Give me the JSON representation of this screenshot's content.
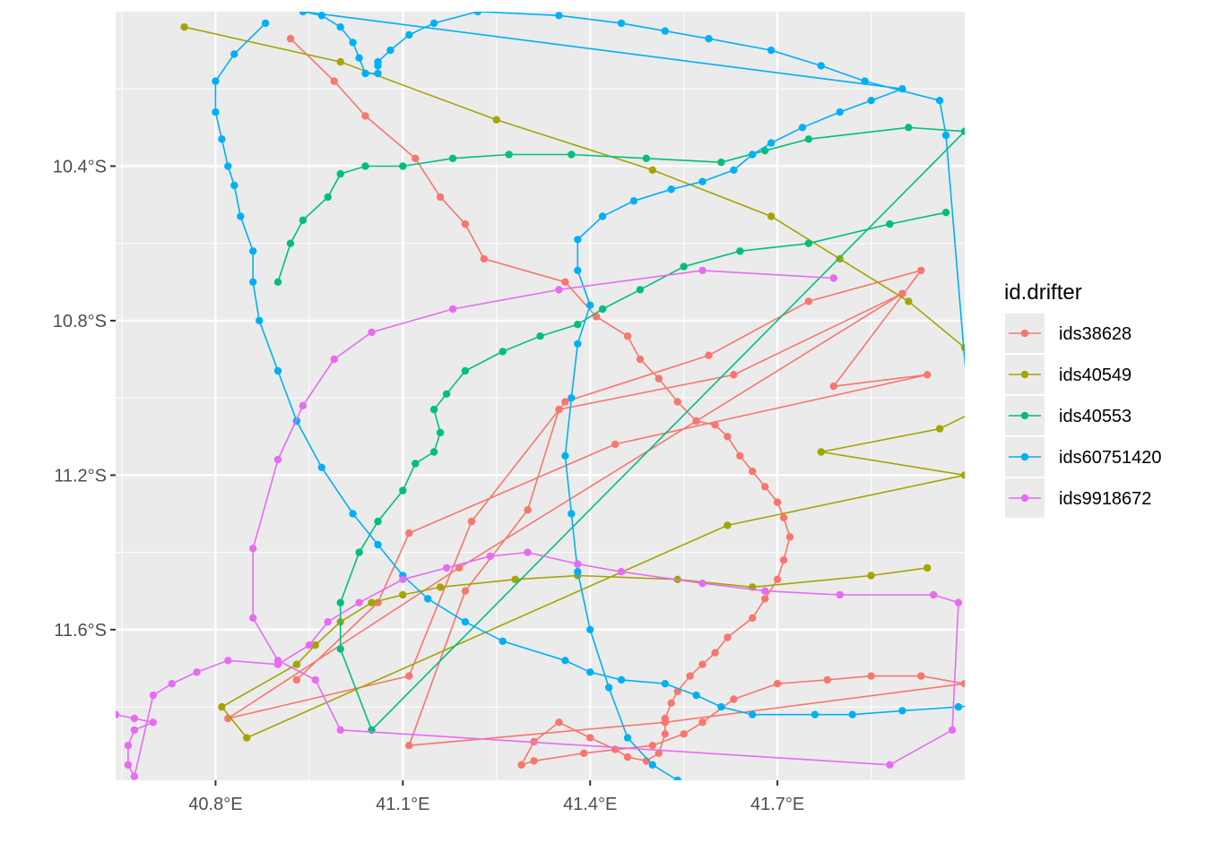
{
  "chart_data": {
    "type": "line",
    "title": "",
    "xlabel": "",
    "ylabel": "",
    "xlim": [
      40.64,
      42.0
    ],
    "ylim": [
      -11.99,
      -10.0
    ],
    "x_ticks": [
      {
        "value": 40.8,
        "label": "40.8°E"
      },
      {
        "value": 41.1,
        "label": "41.1°E"
      },
      {
        "value": 41.4,
        "label": "41.4°E"
      },
      {
        "value": 41.7,
        "label": "41.7°E"
      }
    ],
    "y_ticks": [
      {
        "value": -10.4,
        "label": "10.4°S"
      },
      {
        "value": -10.8,
        "label": "10.8°S"
      },
      {
        "value": -11.2,
        "label": "11.2°S"
      },
      {
        "value": -11.6,
        "label": "11.6°S"
      }
    ],
    "grid": true,
    "background": "#ebebeb",
    "legend": {
      "title": "id.drifter",
      "position": "right"
    },
    "series": [
      {
        "name": "ids38628",
        "color": "#f8766d",
        "points": [
          [
            40.92,
            -10.07
          ],
          [
            40.99,
            -10.18
          ],
          [
            41.04,
            -10.27
          ],
          [
            41.12,
            -10.38
          ],
          [
            41.16,
            -10.48
          ],
          [
            41.2,
            -10.55
          ],
          [
            41.23,
            -10.64
          ],
          [
            41.36,
            -10.7
          ],
          [
            41.41,
            -10.79
          ],
          [
            41.46,
            -10.84
          ],
          [
            41.48,
            -10.9
          ],
          [
            41.51,
            -10.95
          ],
          [
            41.54,
            -11.01
          ],
          [
            41.57,
            -11.06
          ],
          [
            41.6,
            -11.07
          ],
          [
            41.62,
            -11.1
          ],
          [
            41.64,
            -11.15
          ],
          [
            41.66,
            -11.19
          ],
          [
            41.68,
            -11.23
          ],
          [
            41.7,
            -11.27
          ],
          [
            41.71,
            -11.31
          ],
          [
            41.72,
            -11.36
          ],
          [
            41.71,
            -11.42
          ],
          [
            41.7,
            -11.47
          ],
          [
            41.68,
            -11.52
          ],
          [
            41.66,
            -11.57
          ],
          [
            41.62,
            -11.62
          ],
          [
            41.6,
            -11.66
          ],
          [
            41.58,
            -11.69
          ],
          [
            41.56,
            -11.72
          ],
          [
            41.54,
            -11.76
          ],
          [
            41.53,
            -11.79
          ],
          [
            41.52,
            -11.83
          ],
          [
            41.52,
            -11.87
          ],
          [
            41.51,
            -11.92
          ],
          [
            41.49,
            -11.94
          ],
          [
            41.46,
            -11.93
          ],
          [
            41.44,
            -11.91
          ],
          [
            41.4,
            -11.88
          ],
          [
            41.35,
            -11.84
          ],
          [
            41.31,
            -11.89
          ],
          [
            41.29,
            -11.95
          ],
          [
            41.31,
            -11.94
          ],
          [
            41.39,
            -11.92
          ],
          [
            41.5,
            -11.9
          ],
          [
            41.55,
            -11.87
          ],
          [
            41.58,
            -11.84
          ],
          [
            41.63,
            -11.78
          ],
          [
            41.7,
            -11.74
          ],
          [
            41.78,
            -11.73
          ],
          [
            41.85,
            -11.72
          ],
          [
            41.93,
            -11.72
          ],
          [
            42.0,
            -11.74
          ],
          [
            41.52,
            -11.84
          ],
          [
            41.11,
            -11.9
          ],
          [
            41.2,
            -11.5
          ],
          [
            41.3,
            -11.29
          ],
          [
            41.35,
            -11.03
          ],
          [
            41.63,
            -10.94
          ],
          [
            41.9,
            -10.73
          ],
          [
            41.19,
            -11.44
          ],
          [
            40.82,
            -11.83
          ],
          [
            41.11,
            -11.72
          ],
          [
            41.21,
            -11.32
          ],
          [
            41.36,
            -11.01
          ],
          [
            41.59,
            -10.89
          ],
          [
            41.75,
            -10.75
          ],
          [
            41.93,
            -10.67
          ],
          [
            41.79,
            -10.97
          ],
          [
            41.94,
            -10.94
          ],
          [
            41.44,
            -11.12
          ],
          [
            41.11,
            -11.35
          ],
          [
            41.06,
            -11.53
          ],
          [
            40.93,
            -11.73
          ]
        ]
      },
      {
        "name": "ids40549",
        "color": "#a3a500",
        "points": [
          [
            40.75,
            -10.04
          ],
          [
            41.0,
            -10.13
          ],
          [
            41.25,
            -10.28
          ],
          [
            41.5,
            -10.41
          ],
          [
            41.69,
            -10.53
          ],
          [
            41.8,
            -10.64
          ],
          [
            41.91,
            -10.75
          ],
          [
            42.0,
            -10.87
          ],
          [
            42.06,
            -11.0
          ],
          [
            41.96,
            -11.08
          ],
          [
            41.77,
            -11.14
          ],
          [
            42.0,
            -11.2
          ],
          [
            41.62,
            -11.33
          ],
          [
            40.85,
            -11.88
          ],
          [
            40.81,
            -11.8
          ],
          [
            40.93,
            -11.69
          ],
          [
            40.96,
            -11.64
          ],
          [
            41.0,
            -11.58
          ],
          [
            41.05,
            -11.53
          ],
          [
            41.1,
            -11.51
          ],
          [
            41.16,
            -11.49
          ],
          [
            41.28,
            -11.47
          ],
          [
            41.38,
            -11.46
          ],
          [
            41.54,
            -11.47
          ],
          [
            41.66,
            -11.49
          ],
          [
            41.85,
            -11.46
          ],
          [
            41.94,
            -11.44
          ]
        ]
      },
      {
        "name": "ids40553",
        "color": "#00bf7d",
        "points": [
          [
            40.9,
            -10.7
          ],
          [
            40.92,
            -10.6
          ],
          [
            40.94,
            -10.54
          ],
          [
            40.98,
            -10.48
          ],
          [
            41.0,
            -10.42
          ],
          [
            41.04,
            -10.4
          ],
          [
            41.1,
            -10.4
          ],
          [
            41.18,
            -10.38
          ],
          [
            41.27,
            -10.37
          ],
          [
            41.37,
            -10.37
          ],
          [
            41.49,
            -10.38
          ],
          [
            41.61,
            -10.39
          ],
          [
            41.68,
            -10.36
          ],
          [
            41.75,
            -10.33
          ],
          [
            41.91,
            -10.3
          ],
          [
            42.0,
            -10.31
          ],
          [
            41.05,
            -11.86
          ],
          [
            41.0,
            -11.65
          ],
          [
            41.0,
            -11.53
          ],
          [
            41.03,
            -11.4
          ],
          [
            41.06,
            -11.32
          ],
          [
            41.1,
            -11.24
          ],
          [
            41.12,
            -11.17
          ],
          [
            41.15,
            -11.14
          ],
          [
            41.16,
            -11.09
          ],
          [
            41.15,
            -11.03
          ],
          [
            41.17,
            -10.99
          ],
          [
            41.2,
            -10.93
          ],
          [
            41.26,
            -10.88
          ],
          [
            41.32,
            -10.84
          ],
          [
            41.38,
            -10.81
          ],
          [
            41.42,
            -10.77
          ],
          [
            41.48,
            -10.72
          ],
          [
            41.55,
            -10.66
          ],
          [
            41.64,
            -10.62
          ],
          [
            41.75,
            -10.6
          ],
          [
            41.88,
            -10.55
          ],
          [
            41.97,
            -10.52
          ]
        ]
      },
      {
        "name": "ids60751420",
        "color": "#00b0f6",
        "points": [
          [
            40.88,
            -10.03
          ],
          [
            40.83,
            -10.11
          ],
          [
            40.8,
            -10.18
          ],
          [
            40.8,
            -10.26
          ],
          [
            40.81,
            -10.33
          ],
          [
            40.82,
            -10.4
          ],
          [
            40.83,
            -10.45
          ],
          [
            40.84,
            -10.53
          ],
          [
            40.86,
            -10.62
          ],
          [
            40.86,
            -10.7
          ],
          [
            40.87,
            -10.8
          ],
          [
            40.9,
            -10.93
          ],
          [
            40.93,
            -11.06
          ],
          [
            40.97,
            -11.18
          ],
          [
            41.02,
            -11.3
          ],
          [
            41.06,
            -11.38
          ],
          [
            41.1,
            -11.46
          ],
          [
            41.14,
            -11.52
          ],
          [
            41.2,
            -11.58
          ],
          [
            41.26,
            -11.63
          ],
          [
            41.36,
            -11.68
          ],
          [
            41.4,
            -11.71
          ],
          [
            41.45,
            -11.73
          ],
          [
            41.52,
            -11.74
          ],
          [
            41.57,
            -11.77
          ],
          [
            41.61,
            -11.8
          ],
          [
            41.66,
            -11.82
          ],
          [
            41.76,
            -11.82
          ],
          [
            41.82,
            -11.82
          ],
          [
            41.9,
            -11.81
          ],
          [
            41.99,
            -11.8
          ],
          [
            42.06,
            -11.79
          ],
          [
            42.04,
            -11.68
          ],
          [
            41.97,
            -10.32
          ],
          [
            41.96,
            -10.23
          ],
          [
            41.84,
            -10.18
          ],
          [
            41.77,
            -10.14
          ],
          [
            41.69,
            -10.1
          ],
          [
            41.59,
            -10.07
          ],
          [
            41.52,
            -10.05
          ],
          [
            41.45,
            -10.03
          ],
          [
            41.35,
            -10.01
          ],
          [
            41.22,
            -10.0
          ],
          [
            41.15,
            -10.03
          ],
          [
            41.11,
            -10.06
          ],
          [
            41.08,
            -10.1
          ],
          [
            41.06,
            -10.13
          ],
          [
            41.06,
            -10.14
          ],
          [
            41.06,
            -10.16
          ],
          [
            41.04,
            -10.16
          ],
          [
            41.03,
            -10.12
          ],
          [
            41.02,
            -10.08
          ],
          [
            41.0,
            -10.04
          ],
          [
            40.97,
            -10.01
          ],
          [
            40.94,
            -10.0
          ],
          [
            41.9,
            -10.2
          ],
          [
            41.85,
            -10.23
          ],
          [
            41.8,
            -10.26
          ],
          [
            41.74,
            -10.3
          ],
          [
            41.69,
            -10.34
          ],
          [
            41.66,
            -10.37
          ],
          [
            41.63,
            -10.41
          ],
          [
            41.58,
            -10.44
          ],
          [
            41.53,
            -10.46
          ],
          [
            41.47,
            -10.49
          ],
          [
            41.42,
            -10.53
          ],
          [
            41.38,
            -10.59
          ],
          [
            41.38,
            -10.67
          ],
          [
            41.4,
            -10.76
          ],
          [
            41.38,
            -10.86
          ],
          [
            41.37,
            -11.0
          ],
          [
            41.36,
            -11.15
          ],
          [
            41.37,
            -11.3
          ],
          [
            41.38,
            -11.45
          ],
          [
            41.4,
            -11.6
          ],
          [
            41.43,
            -11.75
          ],
          [
            41.46,
            -11.88
          ],
          [
            41.5,
            -11.95
          ],
          [
            41.54,
            -11.99
          ]
        ]
      },
      {
        "name": "ids9918672",
        "color": "#e76bf3",
        "points": [
          [
            40.64,
            -11.82
          ],
          [
            40.67,
            -11.83
          ],
          [
            40.7,
            -11.84
          ],
          [
            40.67,
            -11.86
          ],
          [
            40.66,
            -11.9
          ],
          [
            40.66,
            -11.95
          ],
          [
            40.67,
            -11.98
          ],
          [
            40.7,
            -11.77
          ],
          [
            40.73,
            -11.74
          ],
          [
            40.77,
            -11.71
          ],
          [
            40.82,
            -11.68
          ],
          [
            40.9,
            -11.69
          ],
          [
            40.95,
            -11.64
          ],
          [
            40.98,
            -11.58
          ],
          [
            41.03,
            -11.53
          ],
          [
            41.1,
            -11.47
          ],
          [
            41.17,
            -11.44
          ],
          [
            41.24,
            -11.41
          ],
          [
            41.3,
            -11.4
          ],
          [
            41.38,
            -11.43
          ],
          [
            41.45,
            -11.45
          ],
          [
            41.58,
            -11.48
          ],
          [
            41.68,
            -11.5
          ],
          [
            41.8,
            -11.51
          ],
          [
            41.95,
            -11.51
          ],
          [
            41.99,
            -11.53
          ],
          [
            41.98,
            -11.86
          ],
          [
            41.88,
            -11.95
          ],
          [
            41.0,
            -11.86
          ],
          [
            40.96,
            -11.73
          ],
          [
            40.9,
            -11.68
          ],
          [
            40.86,
            -11.57
          ],
          [
            40.86,
            -11.39
          ],
          [
            40.9,
            -11.16
          ],
          [
            40.94,
            -11.02
          ],
          [
            40.99,
            -10.9
          ],
          [
            41.05,
            -10.83
          ],
          [
            41.18,
            -10.77
          ],
          [
            41.35,
            -10.72
          ],
          [
            41.58,
            -10.67
          ],
          [
            41.79,
            -10.69
          ]
        ]
      }
    ]
  }
}
